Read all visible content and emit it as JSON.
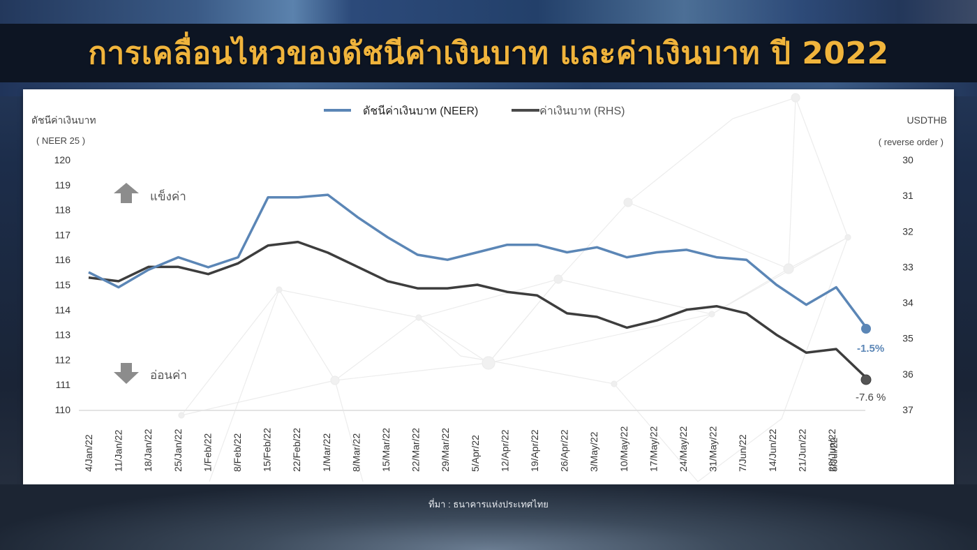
{
  "header": {
    "title": "การเคลื่อนไหวของดัชนีค่าเงินบาท และค่าเงินบาท ปี 2022"
  },
  "footer": {
    "source": "ที่มา : ธนาคารแห่งประเทศไทย"
  },
  "colors": {
    "neer": "#5b86b6",
    "usdthb": "#3d3d3d",
    "title": "#f0b43c",
    "arrow": "#8c8c8c"
  },
  "chart_data": {
    "type": "line",
    "title": "การเคลื่อนไหวของดัชนีค่าเงินบาท และค่าเงินบาท ปี 2022",
    "ylabel": "ดัชนีค่าเงินบาท",
    "ylabel_sub": "( NEER 25 )",
    "y2label": "USDTHB",
    "y2label_sub": "( reverse order )",
    "ylim": [
      110,
      120
    ],
    "y2lim": [
      37,
      30
    ],
    "y2_reversed": true,
    "yticks": [
      "120",
      "119",
      "118",
      "117",
      "116",
      "115",
      "114",
      "113",
      "112",
      "111",
      "110"
    ],
    "y2ticks": [
      "30",
      "31",
      "32",
      "33",
      "34",
      "35",
      "36",
      "37"
    ],
    "legend_position": "top",
    "grid": false,
    "categories": [
      "4/Jan/22",
      "11/Jan/22",
      "18/Jan/22",
      "25/Jan/22",
      "1/Feb/22",
      "8/Feb/22",
      "15/Feb/22",
      "22/Feb/22",
      "1/Mar/22",
      "8/Mar/22",
      "15/Mar/22",
      "22/Mar/22",
      "29/Mar/22",
      "5/Apr/22",
      "12/Apr/22",
      "19/Apr/22",
      "26/Apr/22",
      "3/May/22",
      "10/May/22",
      "17/May/22",
      "24/May/22",
      "31/May/22",
      "7/Jun/22",
      "14/Jun/22",
      "21/Jun/22",
      "28/Jun/22",
      "5/Jul/22"
    ],
    "series": [
      {
        "name": "ดัชนีค่าเงินบาท (NEER)",
        "axis": "left",
        "values": [
          115.5,
          114.9,
          115.6,
          116.1,
          115.7,
          116.1,
          118.5,
          118.5,
          118.6,
          117.7,
          116.9,
          116.2,
          116.0,
          116.3,
          116.6,
          116.6,
          116.3,
          116.5,
          116.1,
          116.3,
          116.4,
          116.1,
          116.0,
          115.0,
          114.2,
          114.9,
          113.3
        ]
      },
      {
        "name": "ค่าเงินบาท (RHS)",
        "axis": "right",
        "values": [
          33.3,
          33.4,
          33.0,
          33.0,
          33.2,
          32.9,
          32.4,
          32.3,
          32.6,
          33.0,
          33.4,
          33.6,
          33.6,
          33.5,
          33.7,
          33.8,
          34.3,
          34.4,
          34.7,
          34.5,
          34.2,
          34.1,
          34.3,
          34.9,
          35.4,
          35.3,
          36.1
        ]
      }
    ],
    "annotations": [
      {
        "text": "แข็งค่า",
        "icon": "arrow-up"
      },
      {
        "text": "อ่อนค่า",
        "icon": "arrow-down"
      },
      {
        "text": "-1.5%",
        "series": "NEER"
      },
      {
        "text": "-7.6 %",
        "series": "USDTHB"
      }
    ]
  },
  "labels": {
    "y_left_title": "ดัชนีค่าเงินบาท",
    "y_left_sub": "( NEER 25 )",
    "y_right_title": "USDTHB",
    "y_right_sub": "( reverse order )",
    "legend_neer": "ดัชนีค่าเงินบาท (NEER)",
    "legend_usd": "ค่าเงินบาท (RHS)",
    "appreciate": "แข็งค่า",
    "depreciate": "อ่อนค่า",
    "end_neer": "-1.5%",
    "end_usd": "-7.6 %"
  }
}
